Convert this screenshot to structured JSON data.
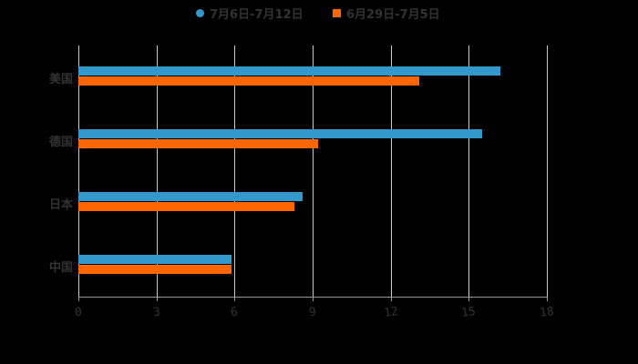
{
  "chart_data": {
    "type": "bar",
    "orientation": "horizontal",
    "categories": [
      "美国",
      "德国",
      "日本",
      "中国"
    ],
    "series": [
      {
        "name": "7月6日-7月12日",
        "color": "#3399cc",
        "values": [
          16.2,
          15.5,
          8.6,
          5.9
        ]
      },
      {
        "name": "6月29日-7月5日",
        "color": "#ff6600",
        "values": [
          13.1,
          9.2,
          8.3,
          5.9
        ]
      }
    ],
    "title": "",
    "xlabel": "",
    "ylabel": "",
    "xlim": [
      0,
      18
    ],
    "xticks": [
      "0",
      "3",
      "6",
      "9",
      "12",
      "15",
      "18"
    ],
    "grid": true,
    "legend_position": "top"
  },
  "legend": [
    {
      "label": "7月6日-7月12日",
      "color": "#3399cc",
      "marker": "circle"
    },
    {
      "label": "6月29日-7月5日",
      "color": "#ff6600",
      "marker": "square"
    }
  ]
}
